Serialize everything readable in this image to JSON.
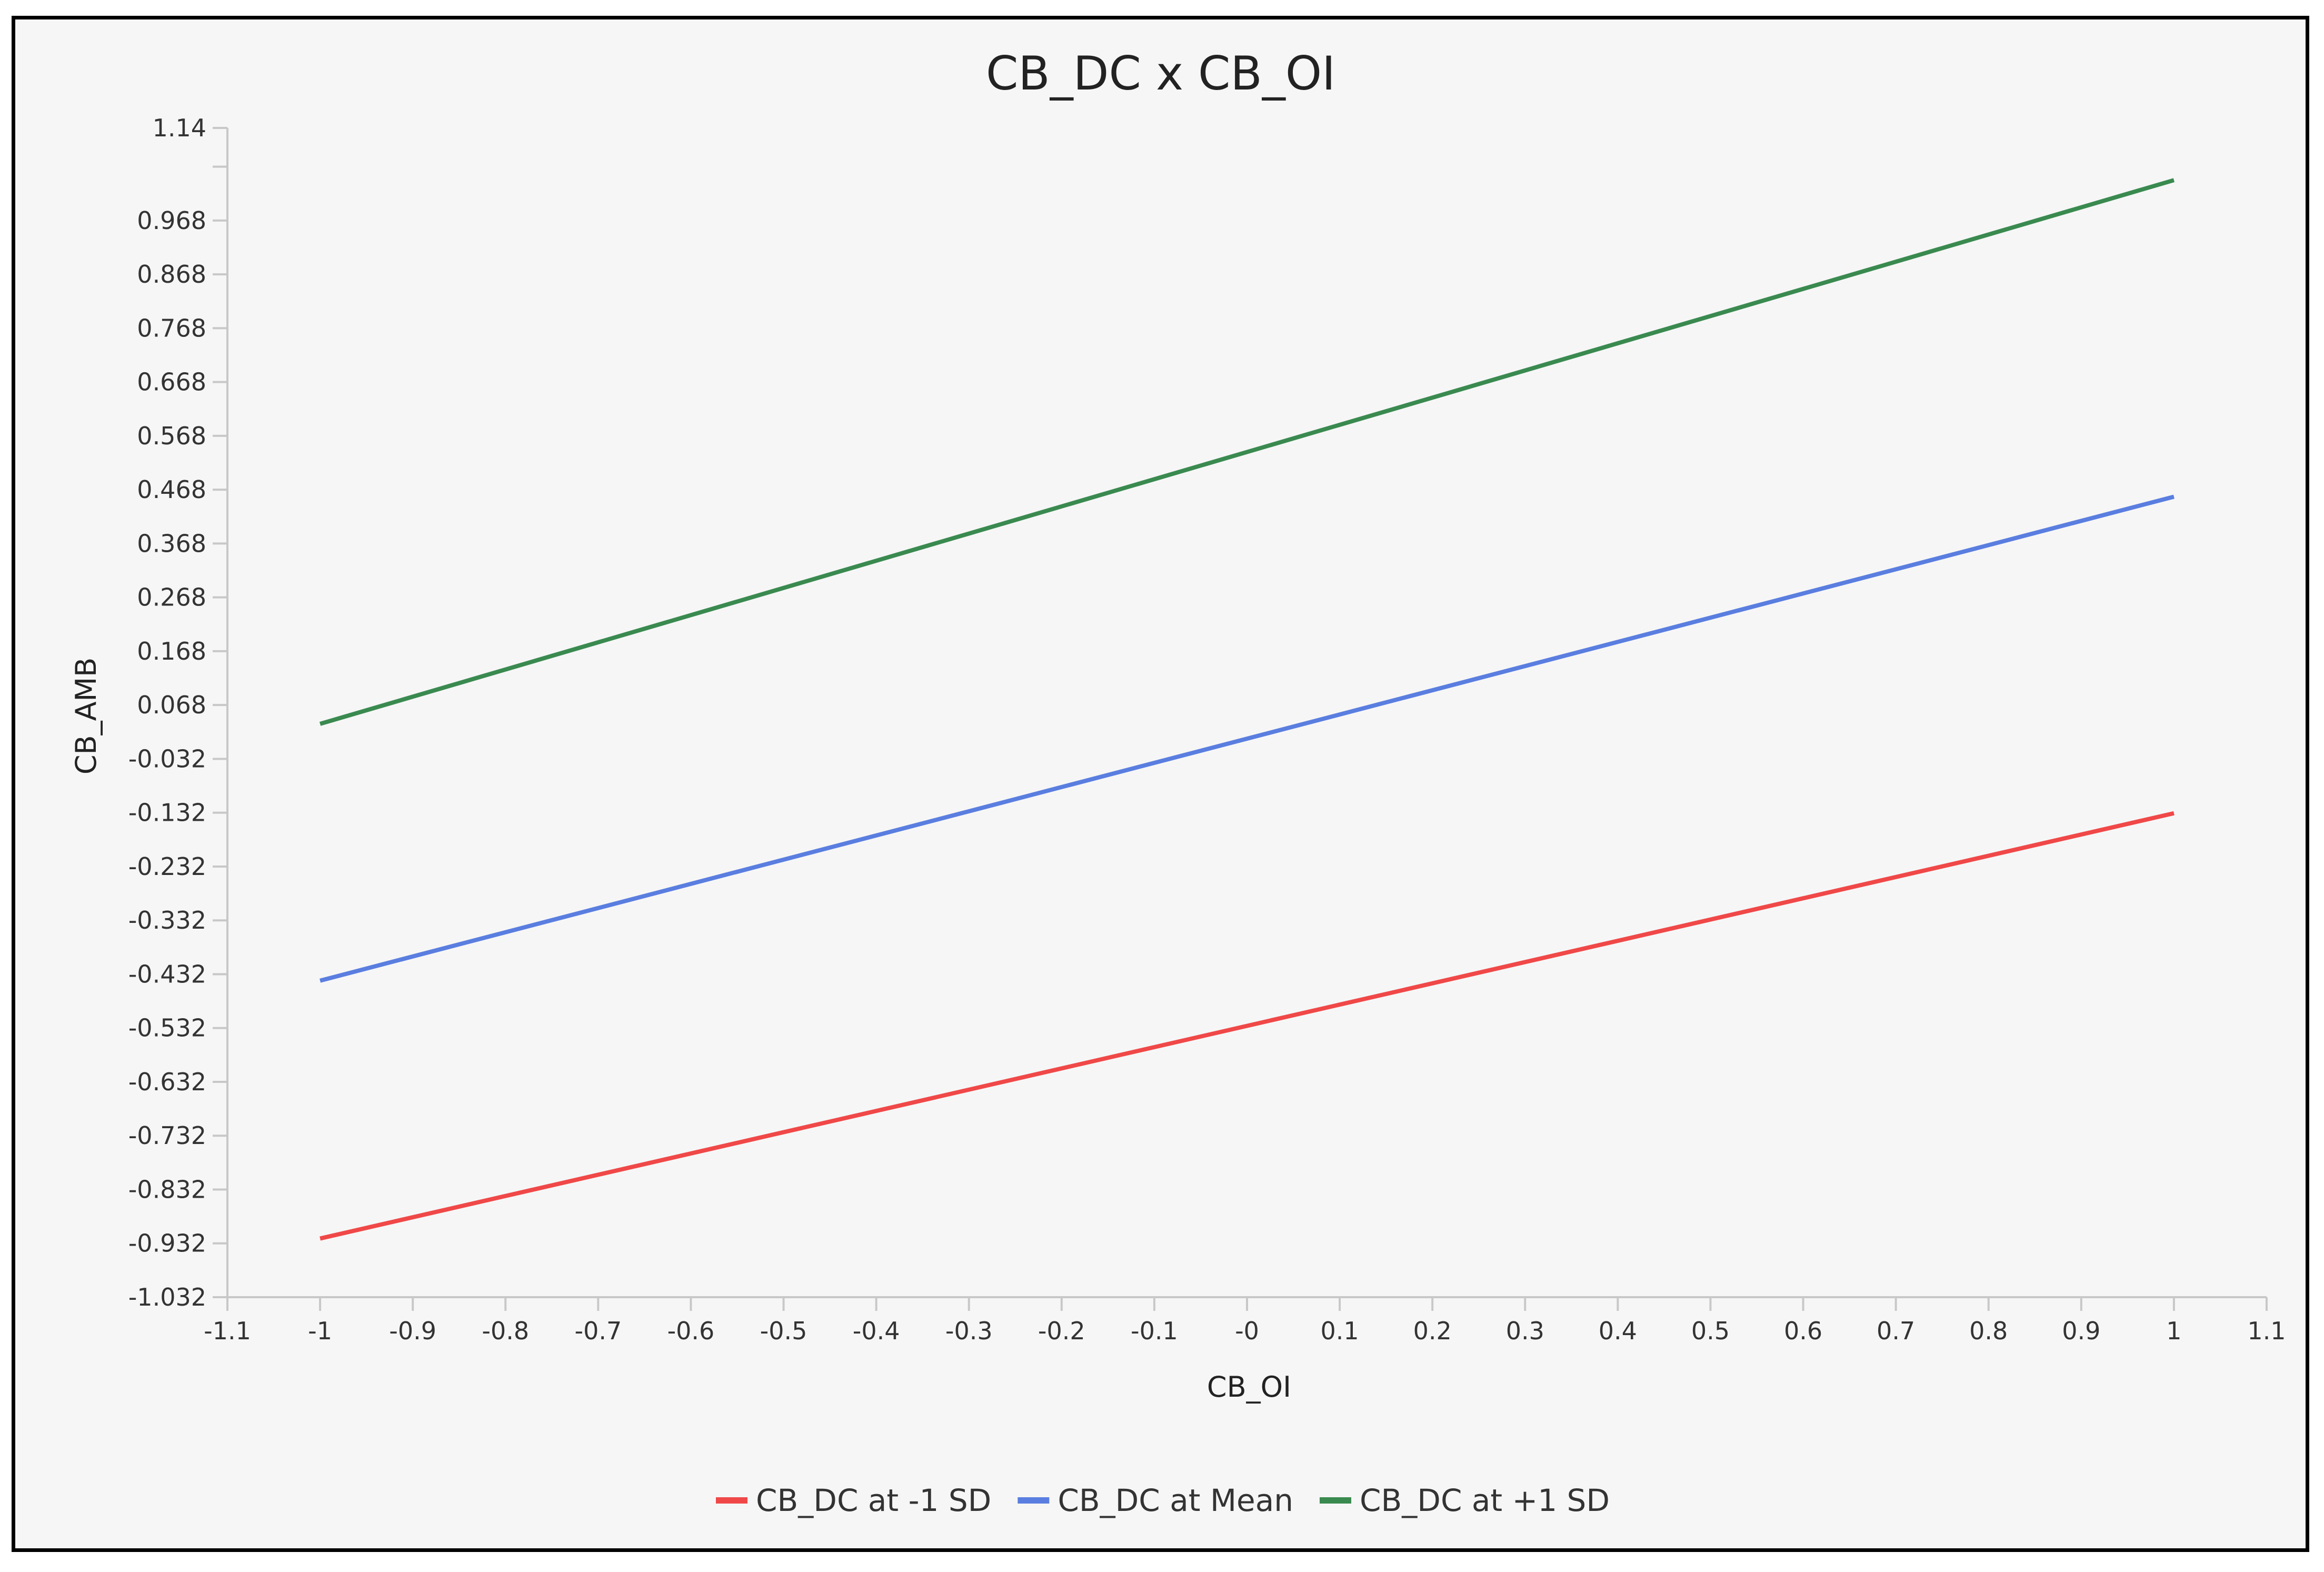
{
  "colors": {
    "background": "#f6f6f6",
    "frame": "#000000",
    "axis": "#c8c8c8",
    "minus_1sd": "#f04848",
    "mean": "#5a7ee0",
    "plus_1sd": "#3a8a50"
  },
  "chart_data": {
    "type": "line",
    "title": "CB_DC x CB_OI",
    "xlabel": "CB_OI",
    "ylabel": "CB_AMB",
    "xlim": [
      -1.1,
      1.1
    ],
    "ylim": [
      -1.032,
      1.14
    ],
    "x_ticks": [
      "-1.1",
      "-1",
      "-0.9",
      "-0.8",
      "-0.7",
      "-0.6",
      "-0.5",
      "-0.4",
      "-0.3",
      "-0.2",
      "-0.1",
      "-0",
      "0.1",
      "0.2",
      "0.3",
      "0.4",
      "0.5",
      "0.6",
      "0.7",
      "0.8",
      "0.9",
      "1",
      "1.1"
    ],
    "y_ticks": [
      "-1.032",
      "-0.932",
      "-0.832",
      "-0.732",
      "-0.632",
      "-0.532",
      "-0.432",
      "-0.332",
      "-0.232",
      "-0.132",
      "-0.032",
      "0.068",
      "0.168",
      "0.268",
      "0.368",
      "0.468",
      "0.568",
      "0.668",
      "0.768",
      "0.868",
      "0.968",
      "1.14"
    ],
    "grid": false,
    "legend_position": "bottom",
    "series": [
      {
        "name": "CB_DC at -1 SD",
        "color": "#f04848",
        "x": [
          -1,
          1
        ],
        "y": [
          -0.923,
          -0.133
        ]
      },
      {
        "name": "CB_DC at Mean",
        "color": "#5a7ee0",
        "x": [
          -1,
          1
        ],
        "y": [
          -0.444,
          0.455
        ]
      },
      {
        "name": "CB_DC at +1 SD",
        "color": "#3a8a50",
        "x": [
          -1,
          1
        ],
        "y": [
          0.033,
          1.043
        ]
      }
    ]
  }
}
